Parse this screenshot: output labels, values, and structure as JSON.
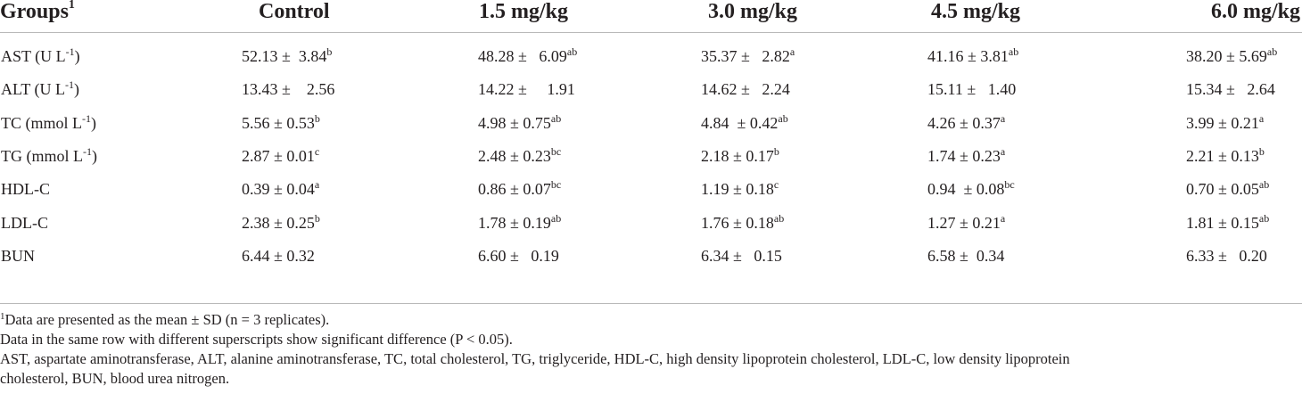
{
  "table": {
    "headers": [
      {
        "text": "Groups",
        "sup": "1"
      },
      {
        "text": "Control",
        "sup": ""
      },
      {
        "text": "1.5 mg/kg",
        "sup": ""
      },
      {
        "text": "3.0 mg/kg",
        "sup": ""
      },
      {
        "text": "4.5 mg/kg",
        "sup": ""
      },
      {
        "text": "6.0 mg/kg",
        "sup": ""
      }
    ],
    "rows": [
      {
        "label": "AST (U L",
        "label_sup": "-1",
        "label_end": ")",
        "cells": [
          {
            "value": "52.13 ±  3.84",
            "sig": "b"
          },
          {
            "value": "48.28 ±   6.09",
            "sig": "ab"
          },
          {
            "value": "35.37 ±   2.82",
            "sig": "a"
          },
          {
            "value": "41.16 ± 3.81",
            "sig": "ab"
          },
          {
            "value": "38.20 ± 5.69",
            "sig": "ab"
          }
        ]
      },
      {
        "label": "ALT (U L",
        "label_sup": "-1",
        "label_end": ")",
        "cells": [
          {
            "value": "13.43 ±    2.56",
            "sig": ""
          },
          {
            "value": "14.22 ±     1.91",
            "sig": ""
          },
          {
            "value": "14.62 ±   2.24",
            "sig": ""
          },
          {
            "value": "15.11 ±   1.40",
            "sig": ""
          },
          {
            "value": "15.34 ±   2.64",
            "sig": ""
          }
        ]
      },
      {
        "label": "TC (mmol L",
        "label_sup": "-1",
        "label_end": ")",
        "cells": [
          {
            "value": "5.56 ± 0.53",
            "sig": "b"
          },
          {
            "value": "4.98 ± 0.75",
            "sig": "ab"
          },
          {
            "value": "4.84  ± 0.42",
            "sig": "ab"
          },
          {
            "value": "4.26 ± 0.37",
            "sig": "a"
          },
          {
            "value": "3.99 ± 0.21",
            "sig": "a"
          }
        ]
      },
      {
        "label": "TG (mmol L",
        "label_sup": "-1",
        "label_end": ")",
        "cells": [
          {
            "value": "2.87 ± 0.01",
            "sig": "c"
          },
          {
            "value": "2.48 ± 0.23",
            "sig": "bc"
          },
          {
            "value": "2.18 ± 0.17",
            "sig": "b"
          },
          {
            "value": "1.74 ± 0.23",
            "sig": "a"
          },
          {
            "value": "2.21 ± 0.13",
            "sig": "b"
          }
        ]
      },
      {
        "label": "HDL-C",
        "label_sup": "",
        "label_end": "",
        "cells": [
          {
            "value": "0.39 ± 0.04",
            "sig": "a"
          },
          {
            "value": "0.86 ± 0.07",
            "sig": "bc"
          },
          {
            "value": "1.19 ± 0.18",
            "sig": "c"
          },
          {
            "value": "0.94  ± 0.08",
            "sig": "bc"
          },
          {
            "value": "0.70 ± 0.05",
            "sig": "ab"
          }
        ]
      },
      {
        "label": "LDL-C",
        "label_sup": "",
        "label_end": "",
        "cells": [
          {
            "value": "2.38 ± 0.25",
            "sig": "b"
          },
          {
            "value": "1.78 ± 0.19",
            "sig": "ab"
          },
          {
            "value": "1.76 ± 0.18",
            "sig": "ab"
          },
          {
            "value": "1.27 ± 0.21",
            "sig": "a"
          },
          {
            "value": "1.81 ± 0.15",
            "sig": "ab"
          }
        ]
      },
      {
        "label": "BUN",
        "label_sup": "",
        "label_end": "",
        "cells": [
          {
            "value": "6.44 ± 0.32",
            "sig": ""
          },
          {
            "value": "6.60 ±   0.19",
            "sig": ""
          },
          {
            "value": "6.34 ±   0.15",
            "sig": ""
          },
          {
            "value": "6.58 ±  0.34",
            "sig": ""
          },
          {
            "value": "6.33 ±   0.20",
            "sig": ""
          }
        ]
      }
    ]
  },
  "notes": {
    "footnote_marker": "1",
    "footnote_text": "Data are presented as the mean ± SD (n = 3 replicates).",
    "significance_note": "Data in the same row with different superscripts show significant difference (P < 0.05).",
    "abbreviations_line1": "AST, aspartate aminotransferase, ALT, alanine aminotransferase, TC, total cholesterol, TG, triglyceride, HDL-C, high density lipoprotein cholesterol, LDL-C, low density lipoprotein",
    "abbreviations_line2": "cholesterol, BUN, blood urea nitrogen."
  }
}
